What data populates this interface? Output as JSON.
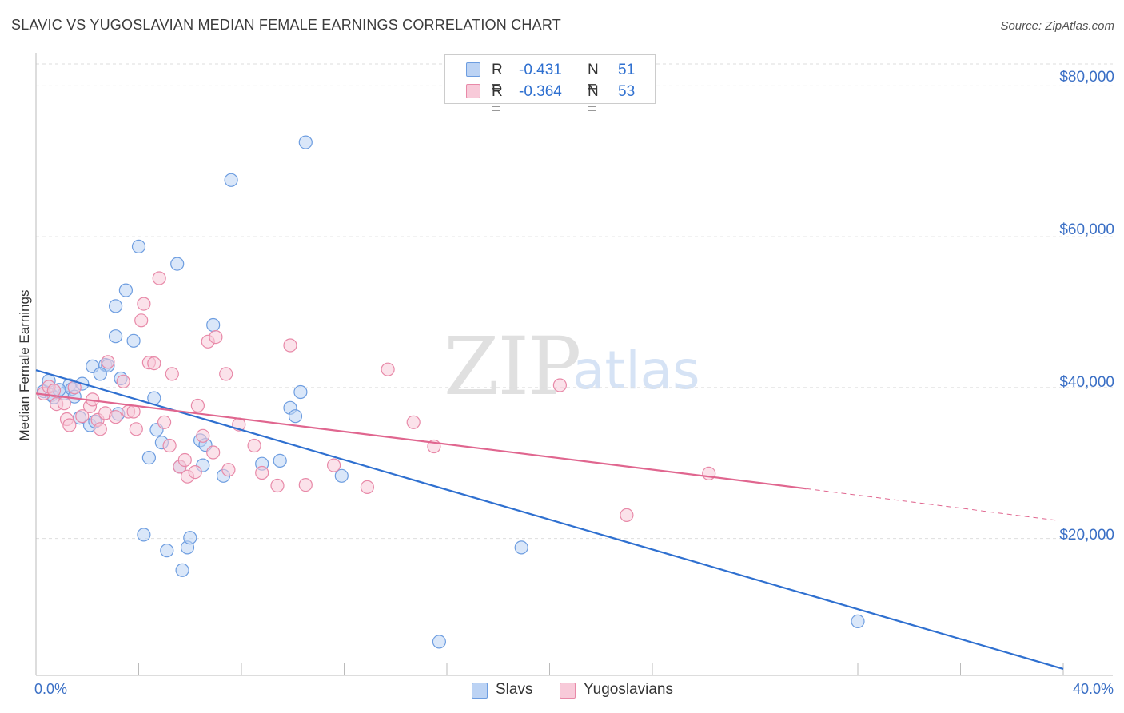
{
  "header": {
    "title": "SLAVIC VS YUGOSLAVIAN MEDIAN FEMALE EARNINGS CORRELATION CHART",
    "source": "Source: ZipAtlas.com"
  },
  "watermark": {
    "zip": "ZIP",
    "atlas": "atlas"
  },
  "legend_top": {
    "rows": [
      {
        "r_label": "R =",
        "r_value": "-0.431",
        "n_label": "N =",
        "n_value": "51",
        "color": "#6d9de0",
        "fill": "#bcd3f4"
      },
      {
        "r_label": "R =",
        "r_value": "-0.364",
        "n_label": "N =",
        "n_value": "53",
        "color": "#e889a8",
        "fill": "#f8cad9"
      }
    ]
  },
  "legend_bottom": [
    "Slavs",
    "Yugoslavians"
  ],
  "colors": {
    "slavs_stroke": "#6d9de0",
    "slavs_fill": "#bcd3f4",
    "slavs_line": "#2f70d0",
    "yugo_stroke": "#e889a8",
    "yugo_fill": "#f8cad9",
    "yugo_line": "#e0668f",
    "accent_text": "#3a6fc5",
    "grid": "#dedede"
  },
  "chart_data": {
    "type": "scatter",
    "xlabel": "",
    "ylabel": "Median Female Earnings",
    "xlim": [
      0,
      40
    ],
    "ylim": [
      2000,
      83000
    ],
    "x_tick_labels": [
      "0.0%",
      "40.0%"
    ],
    "y_ticks": [
      20000,
      40000,
      60000,
      80000
    ],
    "y_tick_labels": [
      "$20,000",
      "$40,000",
      "$60,000",
      "$80,000"
    ],
    "grid": true,
    "legend_position": "top-center",
    "series": [
      {
        "name": "Slavs",
        "points": [
          [
            0.3,
            39500
          ],
          [
            0.5,
            40900
          ],
          [
            0.6,
            39000
          ],
          [
            0.7,
            38700
          ],
          [
            1.1,
            39200
          ],
          [
            1.3,
            40300
          ],
          [
            1.4,
            39800
          ],
          [
            1.8,
            40500
          ],
          [
            1.7,
            36000
          ],
          [
            2.1,
            35000
          ],
          [
            2.2,
            42800
          ],
          [
            2.3,
            35500
          ],
          [
            2.7,
            43000
          ],
          [
            2.8,
            42900
          ],
          [
            3.1,
            50800
          ],
          [
            3.1,
            46800
          ],
          [
            3.3,
            41200
          ],
          [
            3.5,
            52900
          ],
          [
            3.8,
            46200
          ],
          [
            4.0,
            58700
          ],
          [
            4.2,
            20500
          ],
          [
            4.4,
            30700
          ],
          [
            4.6,
            38600
          ],
          [
            4.7,
            34400
          ],
          [
            4.9,
            32700
          ],
          [
            5.1,
            18400
          ],
          [
            5.5,
            56400
          ],
          [
            5.6,
            29500
          ],
          [
            5.7,
            15800
          ],
          [
            5.9,
            18800
          ],
          [
            6.0,
            20100
          ],
          [
            6.4,
            33000
          ],
          [
            6.5,
            29700
          ],
          [
            6.6,
            32400
          ],
          [
            6.9,
            48300
          ],
          [
            7.3,
            28300
          ],
          [
            7.6,
            67500
          ],
          [
            8.8,
            29900
          ],
          [
            9.5,
            30300
          ],
          [
            9.9,
            37300
          ],
          [
            10.1,
            36200
          ],
          [
            10.3,
            39400
          ],
          [
            10.5,
            72500
          ],
          [
            11.9,
            28300
          ],
          [
            15.7,
            6300
          ],
          [
            18.9,
            18800
          ],
          [
            32.0,
            9000
          ],
          [
            0.9,
            39700
          ],
          [
            1.5,
            38800
          ],
          [
            2.5,
            41800
          ],
          [
            3.2,
            36500
          ]
        ]
      },
      {
        "name": "Yugoslavians",
        "points": [
          [
            0.3,
            39200
          ],
          [
            0.5,
            40100
          ],
          [
            0.7,
            39600
          ],
          [
            0.8,
            37800
          ],
          [
            1.1,
            37900
          ],
          [
            1.2,
            35800
          ],
          [
            1.3,
            35000
          ],
          [
            1.5,
            40000
          ],
          [
            1.8,
            36200
          ],
          [
            2.1,
            37500
          ],
          [
            2.2,
            38400
          ],
          [
            2.4,
            35700
          ],
          [
            2.5,
            34500
          ],
          [
            2.7,
            36600
          ],
          [
            2.8,
            43400
          ],
          [
            3.1,
            36100
          ],
          [
            3.4,
            40800
          ],
          [
            3.6,
            36800
          ],
          [
            3.8,
            36800
          ],
          [
            3.9,
            34500
          ],
          [
            4.1,
            48900
          ],
          [
            4.2,
            51100
          ],
          [
            4.4,
            43300
          ],
          [
            4.6,
            43200
          ],
          [
            4.8,
            54500
          ],
          [
            5.0,
            35400
          ],
          [
            5.2,
            32300
          ],
          [
            5.3,
            41800
          ],
          [
            5.6,
            29500
          ],
          [
            5.8,
            30400
          ],
          [
            5.9,
            28200
          ],
          [
            6.2,
            28800
          ],
          [
            6.3,
            37600
          ],
          [
            6.5,
            33600
          ],
          [
            6.7,
            46100
          ],
          [
            6.9,
            31400
          ],
          [
            7.0,
            46700
          ],
          [
            7.4,
            41800
          ],
          [
            7.5,
            29100
          ],
          [
            7.9,
            35100
          ],
          [
            8.5,
            32300
          ],
          [
            8.8,
            28700
          ],
          [
            9.4,
            27000
          ],
          [
            9.9,
            45600
          ],
          [
            10.5,
            27100
          ],
          [
            11.6,
            29700
          ],
          [
            12.9,
            26800
          ],
          [
            13.7,
            42400
          ],
          [
            14.7,
            35400
          ],
          [
            15.5,
            32200
          ],
          [
            20.4,
            40300
          ],
          [
            23.0,
            23100
          ],
          [
            26.2,
            28600
          ]
        ]
      }
    ],
    "trend_lines": [
      {
        "series": "Slavs",
        "x": [
          0,
          40
        ],
        "y": [
          42300,
          2700
        ]
      },
      {
        "series": "Yugoslavians",
        "x": [
          0,
          30
        ],
        "y": [
          39200,
          26600
        ],
        "dashed_extension_to": [
          40,
          22400
        ]
      }
    ]
  }
}
